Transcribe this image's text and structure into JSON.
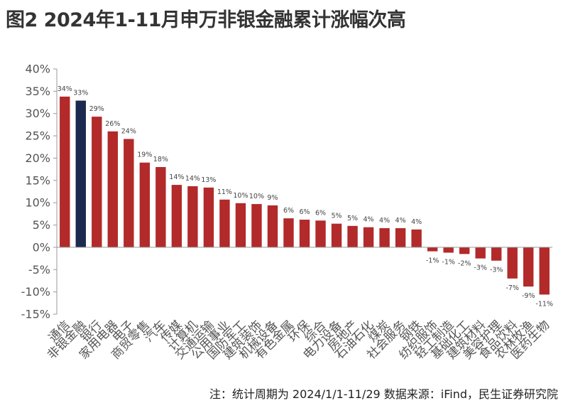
{
  "chart_data": {
    "type": "bar",
    "title": "图2  2024年1-11月申万非银金融累计涨幅次高",
    "note": "注：统计周期为 2024/1/1-11/29    数据来源：iFind，民生证券研究院",
    "categories": [
      "通信",
      "非银金融",
      "银行",
      "家用电器",
      "电子",
      "商贸零售",
      "汽车",
      "传媒",
      "计算机",
      "交通运输",
      "公用事业",
      "国防军工",
      "建筑装饰",
      "机械设备",
      "有色金属",
      "环保",
      "综合",
      "电力设备",
      "房地产",
      "石油石化",
      "煤炭",
      "社会服务",
      "钢铁",
      "纺织服饰",
      "轻工制造",
      "基础化工",
      "建筑材料",
      "美容护理",
      "食品饮料",
      "农林牧渔",
      "医药生物"
    ],
    "values": [
      33.8,
      32.9,
      29.3,
      26.0,
      24.3,
      19.0,
      18.0,
      14.0,
      13.7,
      13.4,
      10.7,
      9.9,
      9.7,
      9.4,
      6.5,
      6.2,
      6.0,
      5.3,
      4.8,
      4.5,
      4.3,
      4.3,
      4.0,
      -0.9,
      -1.2,
      -1.5,
      -2.5,
      -3.0,
      -7.0,
      -8.8,
      -10.6
    ],
    "data_labels": [
      "34%",
      "33%",
      "29%",
      "26%",
      "24%",
      "19%",
      "18%",
      "14%",
      "14%",
      "13%",
      "11%",
      "10%",
      "10%",
      "9%",
      "6%",
      "6%",
      "6%",
      "5%",
      "5%",
      "4%",
      "4%",
      "4%",
      "4%",
      "-1%",
      "-1%",
      "-2%",
      "-3%",
      "-3%",
      "-7%",
      "-9%",
      "-11%"
    ],
    "highlight_index": 1,
    "colors": {
      "default": "#B22A2A",
      "highlight": "#1B2A4E",
      "axis": "#999999",
      "text": "#555555"
    },
    "yticks": [
      40,
      35,
      30,
      25,
      20,
      15,
      10,
      5,
      0,
      -5,
      -10,
      -15
    ],
    "ytick_labels": [
      "40%",
      "35%",
      "30%",
      "25%",
      "20%",
      "15%",
      "10%",
      "5%",
      "0%",
      "-5%",
      "-10%",
      "-15%"
    ],
    "ylim": [
      -15,
      40
    ],
    "grid": false,
    "legend": "none"
  }
}
